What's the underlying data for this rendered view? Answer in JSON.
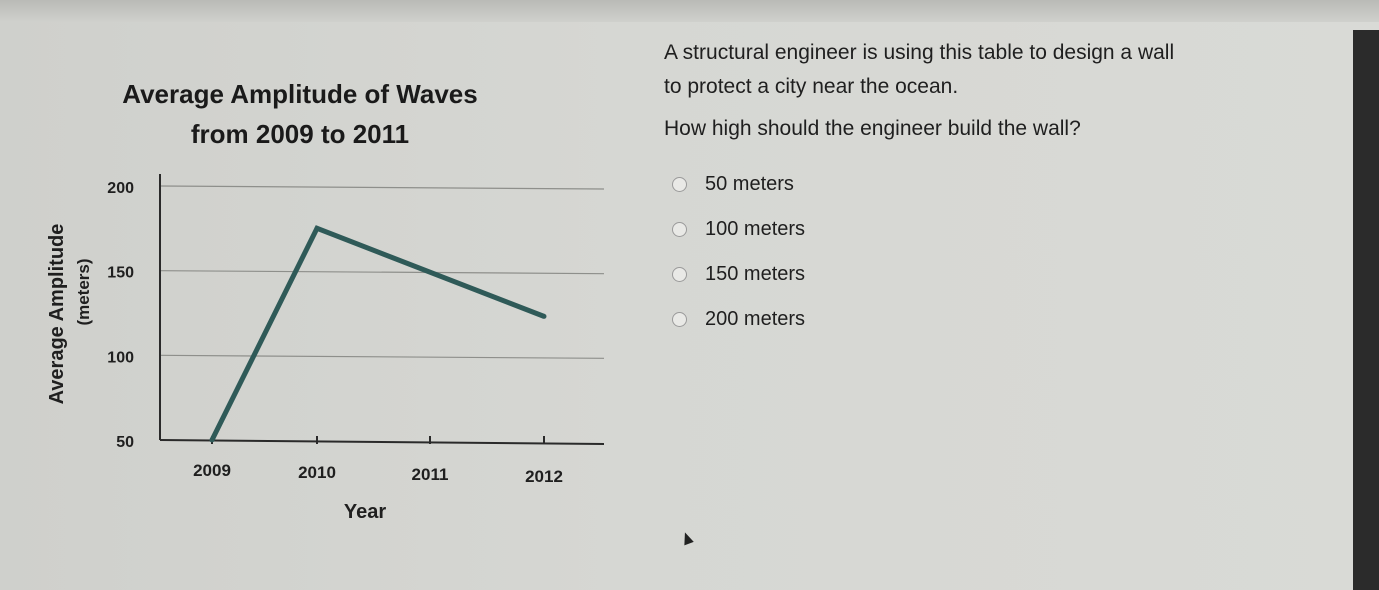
{
  "question": {
    "line1": "A structural engineer is using this table to design a wall",
    "line2": "to protect a city near the ocean.",
    "ask": "How high should the engineer build the wall?",
    "options": [
      {
        "label": "50 meters"
      },
      {
        "label": "100 meters"
      },
      {
        "label": "150 meters"
      },
      {
        "label": "200 meters"
      }
    ]
  },
  "chart_data": {
    "type": "line",
    "title_line1": "Average Amplitude of Waves",
    "title_line2": "from 2009 to 2011",
    "xlabel": "Year",
    "ylabel": "Average Amplitude",
    "ylabel_unit": "(meters)",
    "x_ticks": [
      "2009",
      "2010",
      "2011",
      "2012"
    ],
    "y_ticks": [
      "50",
      "100",
      "150",
      "200"
    ],
    "ylim": [
      50,
      200
    ],
    "grid": true,
    "series": [
      {
        "x": [
          "2009",
          "2010",
          "2012"
        ],
        "values": [
          50,
          175,
          123
        ],
        "color": "#2f5a58"
      }
    ]
  }
}
